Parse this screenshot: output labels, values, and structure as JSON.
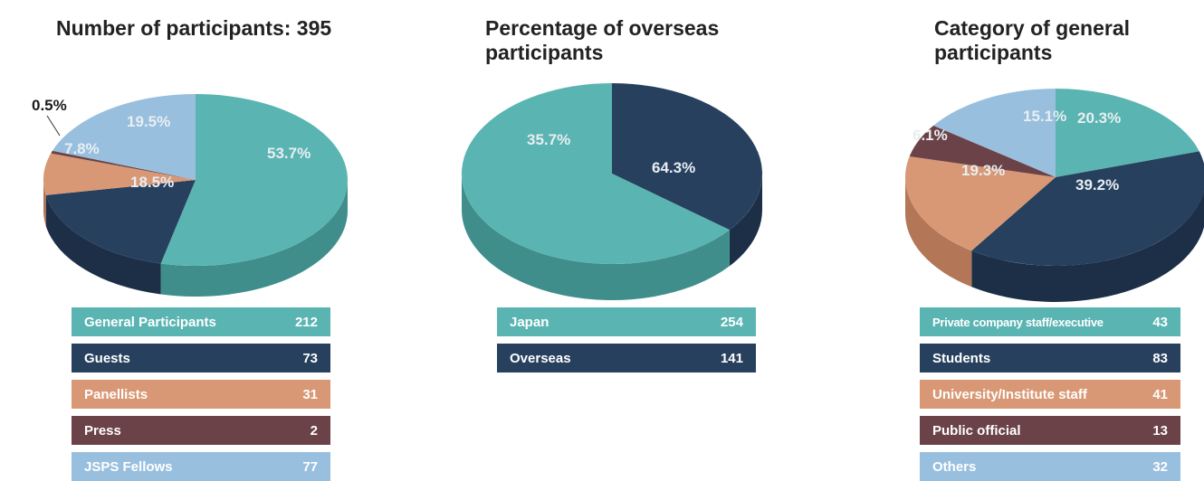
{
  "chart_data": [
    {
      "type": "pie",
      "title": "Number of participants: 395",
      "categories": [
        "General Participants",
        "Guests",
        "Panellists",
        "Press",
        "JSPS Fellows"
      ],
      "values": [
        212,
        73,
        31,
        2,
        77
      ],
      "percent_labels": [
        "53.7%",
        "18.5%",
        "7.8%",
        "0.5%",
        "19.5%"
      ],
      "colors": [
        "#5ab5b2",
        "#27405e",
        "#d99875",
        "#6b4247",
        "#99bfde"
      ],
      "side_colors": [
        "#3f8e8c",
        "#1c2f47",
        "#b37758",
        "#4e2f33",
        "#7898b3"
      ],
      "legend": [
        {
          "label": "General Participants",
          "value": "212"
        },
        {
          "label": "Guests",
          "value": "73"
        },
        {
          "label": "Panellists",
          "value": "31"
        },
        {
          "label": "Press",
          "value": "2"
        },
        {
          "label": "JSPS Fellows",
          "value": "77"
        }
      ]
    },
    {
      "type": "pie",
      "title": "Percentage of overseas participants",
      "categories": [
        "Japan",
        "Overseas"
      ],
      "values": [
        254,
        141
      ],
      "percent_labels": [
        "64.3%",
        "35.7%"
      ],
      "colors": [
        "#5ab5b2",
        "#27405e"
      ],
      "side_colors": [
        "#3f8e8c",
        "#1c2f47"
      ],
      "legend": [
        {
          "label": "Japan",
          "value": "254"
        },
        {
          "label": "Overseas",
          "value": "141"
        }
      ]
    },
    {
      "type": "pie",
      "title": "Category of general participants",
      "categories": [
        "Private company staff/executive",
        "Students",
        "University/Institute staff",
        "Public official",
        "Others"
      ],
      "values": [
        43,
        83,
        41,
        13,
        32
      ],
      "percent_labels": [
        "20.3%",
        "39.2%",
        "19.3%",
        "6.1%",
        "15.1%"
      ],
      "colors": [
        "#5ab5b2",
        "#27405e",
        "#d99875",
        "#6b4247",
        "#99bfde"
      ],
      "side_colors": [
        "#3f8e8c",
        "#1c2f47",
        "#b37758",
        "#4e2f33",
        "#7898b3"
      ],
      "legend": [
        {
          "label": "Private company staff/executive",
          "value": "43"
        },
        {
          "label": "Students",
          "value": "83"
        },
        {
          "label": "University/Institute staff",
          "value": "41"
        },
        {
          "label": "Public official",
          "value": "13"
        },
        {
          "label": "Others",
          "value": "32"
        }
      ]
    }
  ]
}
